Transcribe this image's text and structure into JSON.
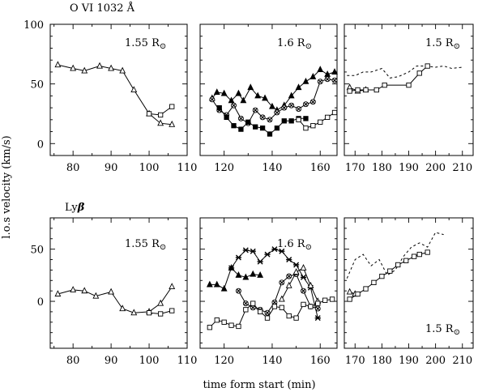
{
  "figure": {
    "title_top": "O VI 1032 Å",
    "title_bottom_prefix": "Ly",
    "title_bottom_suffix": "β",
    "ylabel": "l.o.s velocity (km/s)",
    "xlabel": "time form start (min)"
  },
  "chart_data": [
    {
      "type": "line",
      "row": "top",
      "col": 1,
      "annotation": "1.55 R",
      "annotation_sub": "⊙",
      "xlim": [
        74,
        110
      ],
      "ylim": [
        -10,
        100
      ],
      "xticks": [
        80,
        90,
        100,
        110
      ],
      "yticks": [
        0,
        50,
        100
      ],
      "series": [
        {
          "marker": "triangle",
          "dashed": false,
          "x": [
            76,
            80,
            83,
            87,
            90,
            93,
            96,
            100,
            103,
            106
          ],
          "y": [
            66,
            63,
            61,
            65,
            63,
            61,
            45,
            25,
            17,
            16
          ]
        },
        {
          "marker": "square",
          "dashed": false,
          "x": [
            100,
            103,
            106
          ],
          "y": [
            25,
            24,
            31
          ]
        }
      ]
    },
    {
      "type": "line",
      "row": "top",
      "col": 2,
      "annotation": "1.6 R",
      "annotation_sub": "⊙",
      "xlim": [
        110,
        167
      ],
      "ylim": [
        -10,
        100
      ],
      "xticks": [
        120,
        140,
        160
      ],
      "yticks": [
        0,
        50,
        100
      ],
      "series": [
        {
          "marker": "triangle-filled",
          "dashed": false,
          "x": [
            115,
            117,
            120,
            123,
            126,
            128,
            131,
            134,
            137,
            140,
            142,
            145,
            148,
            151,
            154,
            157,
            160,
            163,
            166
          ],
          "y": [
            38,
            43,
            42,
            36,
            42,
            36,
            47,
            40,
            38,
            31,
            28,
            32,
            40,
            47,
            52,
            56,
            62,
            58,
            60
          ]
        },
        {
          "marker": "circle-cross",
          "dashed": false,
          "x": [
            115,
            118,
            121,
            124,
            127,
            130,
            133,
            136,
            139,
            142,
            145,
            148,
            151,
            154,
            157,
            160,
            163,
            166
          ],
          "y": [
            37,
            28,
            24,
            32,
            21,
            17,
            28,
            22,
            20,
            26,
            30,
            32,
            29,
            33,
            35,
            52,
            54,
            53
          ]
        },
        {
          "marker": "square-filled",
          "dashed": false,
          "x": [
            118,
            121,
            124,
            127,
            130,
            133,
            136,
            139,
            142,
            145,
            148,
            151,
            154
          ],
          "y": [
            30,
            22,
            15,
            12,
            18,
            14,
            13,
            8,
            13,
            19,
            19,
            21,
            21
          ]
        },
        {
          "marker": "square",
          "dashed": false,
          "x": [
            151,
            154,
            157,
            160,
            163,
            166
          ],
          "y": [
            20,
            13,
            15,
            18,
            22,
            26
          ]
        }
      ]
    },
    {
      "type": "line",
      "row": "top",
      "col": 3,
      "annotation": "1.5 R",
      "annotation_sub": "⊙",
      "xlim": [
        166,
        214
      ],
      "ylim": [
        -10,
        100
      ],
      "xticks": [
        170,
        180,
        190,
        200,
        210
      ],
      "yticks": [
        0,
        50,
        100
      ],
      "series": [
        {
          "marker": "none",
          "dashed": true,
          "x": [
            167,
            170,
            173,
            176,
            180,
            183,
            186,
            190,
            193,
            196,
            200,
            203,
            206,
            210
          ],
          "y": [
            57,
            57,
            60,
            60,
            63,
            55,
            56,
            60,
            65,
            65,
            64,
            65,
            63,
            64
          ]
        },
        {
          "marker": "triangle",
          "dashed": false,
          "x": [
            168,
            171,
            174
          ],
          "y": [
            47,
            44,
            45
          ]
        },
        {
          "marker": "square",
          "dashed": false,
          "x": [
            168,
            171,
            174,
            178,
            181,
            190,
            194,
            197
          ],
          "y": [
            44,
            45,
            45,
            45,
            49,
            49,
            59,
            65
          ]
        }
      ]
    },
    {
      "type": "line",
      "row": "bottom",
      "col": 1,
      "annotation": "1.55 R",
      "annotation_sub": "⊙",
      "xlim": [
        74,
        110
      ],
      "ylim": [
        -45,
        80
      ],
      "xticks": [
        80,
        90,
        100,
        110
      ],
      "yticks": [
        0,
        50
      ],
      "series": [
        {
          "marker": "triangle",
          "dashed": false,
          "x": [
            76,
            80,
            83,
            86,
            90,
            93,
            96,
            100,
            103,
            106
          ],
          "y": [
            7,
            11,
            10,
            5,
            9,
            -7,
            -11,
            -10,
            -2,
            14
          ]
        },
        {
          "marker": "square",
          "dashed": false,
          "x": [
            100,
            103,
            106
          ],
          "y": [
            -11,
            -12,
            -9
          ]
        }
      ]
    },
    {
      "type": "line",
      "row": "bottom",
      "col": 2,
      "annotation": "1.6 R",
      "annotation_sub": "⊙",
      "xlim": [
        110,
        167
      ],
      "ylim": [
        -45,
        80
      ],
      "xticks": [
        120,
        140,
        160
      ],
      "yticks": [
        0,
        50
      ],
      "series": [
        {
          "marker": "triangle-filled",
          "dashed": false,
          "x": [
            114,
            117,
            120,
            123,
            126,
            129,
            132,
            135
          ],
          "y": [
            16,
            16,
            12,
            32,
            25,
            23,
            26,
            25
          ]
        },
        {
          "marker": "star",
          "dashed": false,
          "x": [
            123,
            126,
            129,
            132,
            135,
            138,
            141,
            144,
            147,
            150,
            153,
            156,
            159
          ],
          "y": [
            32,
            42,
            49,
            48,
            38,
            45,
            50,
            48,
            40,
            35,
            23,
            13,
            -16
          ]
        },
        {
          "marker": "circle-cross",
          "dashed": false,
          "x": [
            126,
            129,
            132,
            135,
            138,
            141,
            144,
            147,
            150,
            153,
            156,
            159
          ],
          "y": [
            10,
            -2,
            -6,
            -8,
            -11,
            -1,
            18,
            24,
            26,
            10,
            -5,
            -7
          ]
        },
        {
          "marker": "triangle",
          "dashed": false,
          "x": [
            144,
            147,
            150,
            153,
            156,
            159
          ],
          "y": [
            2,
            15,
            28,
            32,
            15,
            0
          ]
        },
        {
          "marker": "square",
          "dashed": false,
          "x": [
            114,
            117,
            120,
            123,
            126,
            129,
            132,
            135,
            138,
            141,
            144,
            147,
            150,
            153,
            156,
            159,
            162,
            165
          ],
          "y": [
            -25,
            -18,
            -20,
            -23,
            -24,
            -8,
            -2,
            -10,
            -16,
            -5,
            -6,
            -14,
            -16,
            -3,
            -5,
            -2,
            1,
            2
          ]
        }
      ]
    },
    {
      "type": "line",
      "row": "bottom",
      "col": 3,
      "annotation": "1.5 R",
      "annotation_sub": "⊙",
      "xlim": [
        166,
        214
      ],
      "ylim": [
        -45,
        80
      ],
      "xticks": [
        170,
        180,
        190,
        200,
        210
      ],
      "yticks": [
        0,
        50
      ],
      "series": [
        {
          "marker": "none",
          "dashed": true,
          "x": [
            167,
            170,
            173,
            176,
            179,
            182,
            185,
            188,
            191,
            194,
            197,
            200,
            203
          ],
          "y": [
            22,
            40,
            45,
            34,
            40,
            25,
            30,
            43,
            52,
            56,
            52,
            66,
            64
          ]
        },
        {
          "marker": "triangle",
          "dashed": false,
          "x": [
            168,
            170
          ],
          "y": [
            9,
            7
          ]
        },
        {
          "marker": "square",
          "dashed": false,
          "x": [
            168,
            171,
            174,
            177,
            180,
            183,
            186,
            189,
            192,
            194,
            197
          ],
          "y": [
            2,
            7,
            12,
            18,
            24,
            29,
            35,
            39,
            43,
            45,
            47
          ]
        }
      ]
    }
  ]
}
